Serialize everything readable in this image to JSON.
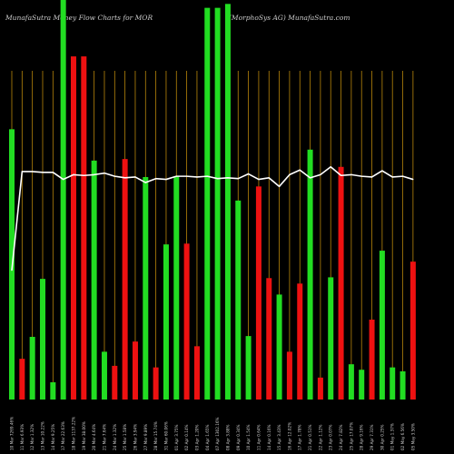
{
  "header": {
    "left": "MunafaSutra Money Flow  Charts for MOR",
    "right": "(MorphoSys AG) MunafaSutra.com"
  },
  "colors": {
    "background": "#000000",
    "up": "#22dd22",
    "down": "#ee1111",
    "grid": "#b8860b",
    "line": "#ffffff",
    "text": "#cccccc"
  },
  "chart_data": {
    "type": "bar",
    "categories": [
      "10 Mar 7269.46%",
      "11 Mar 6.93%",
      "12 Mar 1.32%",
      "13 Mar 10.22%",
      "14 Mar 9.25%",
      "17 Mar 22.63%",
      "18 Mar 1137.22%",
      "19 Mar 38.00%",
      "20 Mar 4.64%",
      "21 Mar 7.64%",
      "24 Mar 1.32%",
      "25 Mar 1.58%",
      "26 Mar 3.94%",
      "27 Mar 9.89%",
      "28 Mar 15.74%",
      "31 Mar 60.06%",
      "01 Apr 3.75%",
      "02 Apr 0.14%",
      "03 Apr 1.20%",
      "04 Apr 1.65%",
      "07 Apr 1302.16%",
      "08 Apr 3.88%",
      "09 Apr 0.34%",
      "10 Apr 1.54%",
      "11 Apr 0.64%",
      "14 Apr 0.16%",
      "15 Apr 3.43%",
      "16 Apr 12.02%",
      "17 Apr 1.78%",
      "21 Apr 0.51%",
      "22 Apr 1.12%",
      "23 Apr 0.07%",
      "24 Apr 7.82%",
      "25 Apr 17.07%",
      "28 Apr 9.16%",
      "29 Apr 7.31%",
      "30 Apr 0.25%",
      "01 May 1.37%",
      "02 May 6.56%",
      "05 May 3.50%"
    ],
    "series": [
      {
        "values": [
          345,
          52,
          80,
          154,
          22,
          510,
          438,
          438,
          305,
          61,
          43,
          307,
          74,
          284,
          41,
          198,
          285,
          199,
          68,
          500,
          500,
          505,
          254,
          81,
          272,
          155,
          134,
          61,
          148,
          319,
          28,
          156,
          297,
          45,
          38,
          102,
          190,
          41,
          36,
          176
        ],
        "colors": [
          "up",
          "down",
          "up",
          "up",
          "up",
          "up",
          "down",
          "down",
          "up",
          "up",
          "down",
          "down",
          "down",
          "up",
          "down",
          "up",
          "up",
          "down",
          "down",
          "up",
          "up",
          "up",
          "up",
          "up",
          "down",
          "down",
          "up",
          "down",
          "down",
          "up",
          "down",
          "up",
          "down",
          "up",
          "up",
          "down",
          "up",
          "up",
          "up",
          "down"
        ]
      },
      {
        "type": "line",
        "values": [
          165,
          291,
          291,
          290,
          290,
          281,
          287,
          286,
          287,
          289,
          285,
          283,
          284,
          277,
          282,
          281,
          285,
          285,
          284,
          285,
          282,
          283,
          282,
          288,
          281,
          283,
          272,
          287,
          293,
          283,
          287,
          297,
          286,
          287,
          285,
          284,
          292,
          284,
          285,
          281
        ]
      }
    ],
    "ylim": [
      0,
      510
    ],
    "grid": "vertical",
    "legend": "none"
  }
}
